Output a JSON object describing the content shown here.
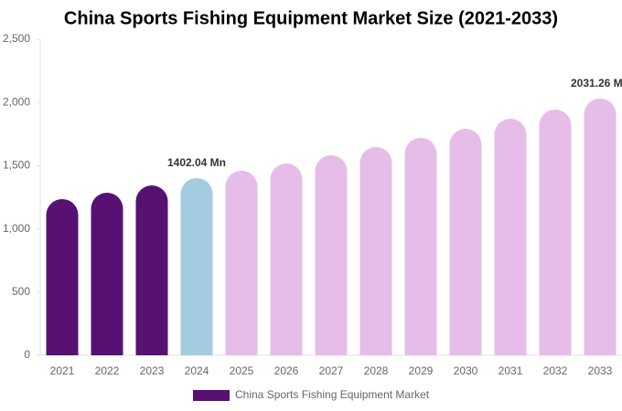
{
  "chart_data": {
    "type": "bar",
    "title": "China Sports Fishing Equipment Market Size (2021-2033)",
    "categories": [
      "2021",
      "2022",
      "2023",
      "2024",
      "2025",
      "2026",
      "2027",
      "2028",
      "2029",
      "2030",
      "2031",
      "2032",
      "2033"
    ],
    "series": [
      {
        "name": "China Sports Fishing Equipment Market",
        "color": "#561172",
        "values": [
          1236,
          1286,
          1344,
          1402.04,
          1460,
          1517,
          1582,
          1647,
          1720,
          1792,
          1871,
          1944,
          2031.26
        ],
        "value_labels": [
          null,
          null,
          null,
          "1402.04 Mn",
          null,
          null,
          null,
          null,
          null,
          null,
          null,
          null,
          "2031.26 Mn"
        ],
        "colors": [
          "#561172",
          "#561172",
          "#561172",
          "#a5cbe0",
          "#e6bde9",
          "#e6bde9",
          "#e6bde9",
          "#e6bde9",
          "#e6bde9",
          "#e6bde9",
          "#e6bde9",
          "#e6bde9",
          "#e6bde9"
        ]
      }
    ],
    "ylim": [
      0,
      2500
    ],
    "yticks": [
      0,
      500,
      {
        "value": 1000,
        "label": "1,000"
      },
      {
        "value": 1500,
        "label": "1,500"
      },
      {
        "value": 2000,
        "label": "2,000"
      },
      {
        "value": 2500,
        "label": "2,500"
      }
    ]
  }
}
